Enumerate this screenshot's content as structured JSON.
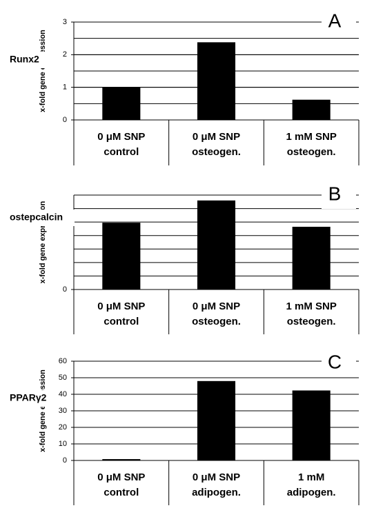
{
  "chart_data": [
    {
      "type": "bar",
      "panel_label": "A",
      "gene_label": "Runx2",
      "y_label": "x-fold gene expression",
      "categories": [
        [
          "0 μM SNP",
          "control"
        ],
        [
          "0 μM SNP",
          "osteogen."
        ],
        [
          "1 mM SNP",
          "osteogen."
        ]
      ],
      "values": [
        1,
        2.38,
        0.62
      ],
      "color": "#000000",
      "ylim": [
        0,
        3
      ],
      "yticks": [
        0,
        1,
        2,
        3
      ],
      "grid": true,
      "grid_step": 0.5
    },
    {
      "type": "bar",
      "panel_label": "B",
      "gene_label": "ostepcalcin",
      "y_label": "x-fold gene expression",
      "categories": [
        [
          "0 μM SNP",
          "control"
        ],
        [
          "0 μM SNP",
          "osteogen."
        ],
        [
          "1 mM SNP",
          "osteogen."
        ]
      ],
      "values": [
        4.95,
        6.6,
        4.65
      ],
      "color": "#000000",
      "ylim": [
        0,
        7
      ],
      "yticks": [
        0
      ],
      "grid": true,
      "grid_step": 1
    },
    {
      "type": "bar",
      "panel_label": "C",
      "gene_label": "PPARγ2",
      "y_label": "x-fold gene expression",
      "categories": [
        [
          "0 μM SNP",
          "control"
        ],
        [
          "0 μM SNP",
          "adipogen."
        ],
        [
          "1 mM",
          "adipogen."
        ]
      ],
      "values": [
        0.8,
        48,
        42.3
      ],
      "color": "#000000",
      "ylim": [
        0,
        60
      ],
      "yticks": [
        0,
        10,
        20,
        30,
        40,
        50,
        60
      ],
      "grid": true,
      "grid_step": 10
    }
  ]
}
